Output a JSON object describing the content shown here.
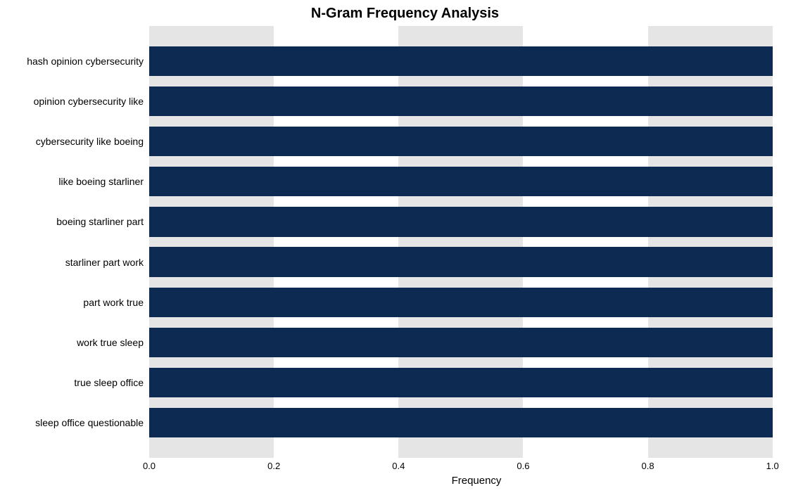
{
  "chart": {
    "type": "bar-horizontal",
    "title": "N-Gram Frequency Analysis",
    "title_fontsize": 20,
    "title_fontweight": "700",
    "xlabel": "Frequency",
    "xlabel_fontsize": 15,
    "ylabel_fontsize": 14,
    "tick_fontsize": 13,
    "background_color": "#ffffff",
    "grid_band_color": "#e5e5e5",
    "bar_color": "#0d2a52",
    "xlim": [
      0.0,
      1.05
    ],
    "xticks": [
      0.0,
      0.2,
      0.4,
      0.6,
      0.8,
      1.0
    ],
    "xtick_labels": [
      "0.0",
      "0.2",
      "0.4",
      "0.6",
      "0.8",
      "1.0"
    ],
    "bar_height_ratio": 0.74,
    "categories": [
      "hash opinion cybersecurity",
      "opinion cybersecurity like",
      "cybersecurity like boeing",
      "like boeing starliner",
      "boeing starliner part",
      "starliner part work",
      "part work true",
      "work true sleep",
      "true sleep office",
      "sleep office questionable"
    ],
    "values": [
      1.0,
      1.0,
      1.0,
      1.0,
      1.0,
      1.0,
      1.0,
      1.0,
      1.0,
      1.0
    ]
  }
}
